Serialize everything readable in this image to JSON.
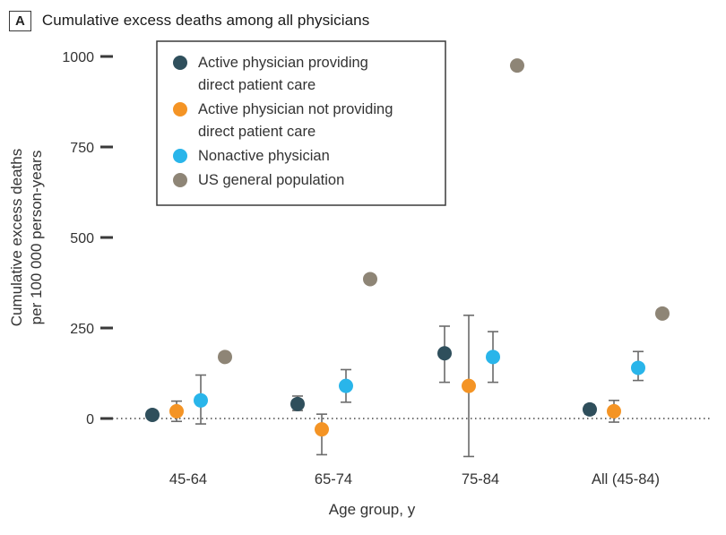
{
  "panel": {
    "label": "A",
    "title": "Cumulative excess deaths among all physicians"
  },
  "chart_data": {
    "type": "scatter",
    "title": "Cumulative excess deaths among all physicians",
    "xlabel": "Age group, y",
    "ylabel_lines": [
      "Cumulative excess deaths",
      "per 100 000 person-years"
    ],
    "ylim": [
      -150,
      1030
    ],
    "yticks": [
      0,
      250,
      500,
      750,
      1000
    ],
    "grid": false,
    "zero_line": true,
    "legend_position": "top-left-inside",
    "categories": [
      "45-64",
      "65-74",
      "75-84",
      "All (45-84)"
    ],
    "series": [
      {
        "name": "Active physician providing direct patient care",
        "label_lines": [
          "Active physician providing",
          "direct patient care"
        ],
        "color": "#2f4f5c",
        "values": [
          10,
          40,
          180,
          25
        ],
        "ci_low": [
          0,
          22,
          100,
          12
        ],
        "ci_high": [
          20,
          62,
          255,
          38
        ]
      },
      {
        "name": "Active physician not providing direct patient care",
        "label_lines": [
          "Active physician not providing",
          "direct patient care"
        ],
        "color": "#f49425",
        "values": [
          20,
          -30,
          90,
          20
        ],
        "ci_low": [
          -8,
          -100,
          -105,
          -10
        ],
        "ci_high": [
          48,
          12,
          285,
          50
        ]
      },
      {
        "name": "Nonactive physician",
        "label_lines": [
          "Nonactive physician"
        ],
        "color": "#29b5ea",
        "values": [
          50,
          90,
          170,
          140
        ],
        "ci_low": [
          -15,
          45,
          100,
          105
        ],
        "ci_high": [
          120,
          135,
          240,
          185
        ]
      },
      {
        "name": "US general population",
        "label_lines": [
          "US general population"
        ],
        "color": "#8e8576",
        "values": [
          170,
          385,
          975,
          290
        ],
        "ci_low": null,
        "ci_high": null
      }
    ],
    "style": {
      "axis_color": "#3a3a3a",
      "text_color": "#333333",
      "errorbar_color": "#6b6b6b",
      "point_radius": 8
    }
  }
}
